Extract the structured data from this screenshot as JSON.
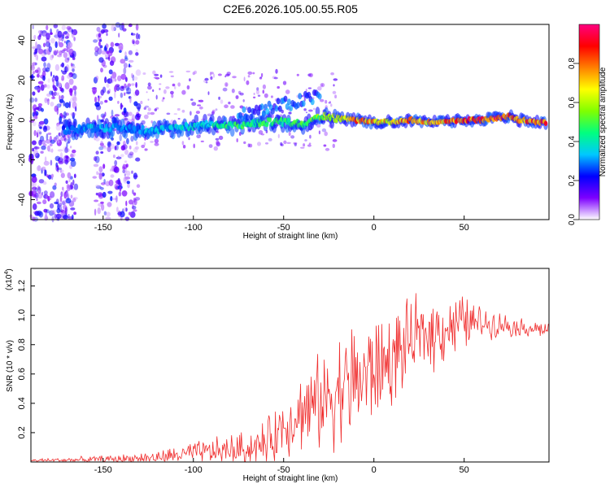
{
  "figure_title": "C2E6.2026.105.00.55.R05",
  "chart_data": [
    {
      "id": "spectrogram",
      "type": "heatmap",
      "xlabel": "Height of straight line (km)",
      "ylabel": "Frequency (Hz)",
      "xlim": [
        -190,
        97
      ],
      "ylim": [
        -50,
        48
      ],
      "xticks": [
        -150,
        -100,
        -50,
        0,
        50
      ],
      "yticks": [
        -40,
        -20,
        0,
        20,
        40
      ],
      "colorbar": {
        "label": "Normalized spectral amplitude",
        "range": [
          0,
          1
        ],
        "ticks": [
          0.0,
          0.2,
          0.4,
          0.6,
          0.8
        ],
        "tick_labels": [
          "0.0",
          "0.2",
          "0.4",
          "0.6",
          "0.8"
        ],
        "stops": [
          "#ffffff",
          "#7d00ff",
          "#0000ff",
          "#00c8ff",
          "#00ff80",
          "#80ff00",
          "#ffff00",
          "#ff8000",
          "#ff0000",
          "#ff0080"
        ]
      },
      "ridge": {
        "x": [
          -170,
          -160,
          -150,
          -140,
          -130,
          -120,
          -110,
          -100,
          -90,
          -80,
          -70,
          -60,
          -50,
          -40,
          -30,
          -20,
          -10,
          0,
          10,
          20,
          30,
          40,
          50,
          60,
          70,
          75,
          80,
          90,
          97
        ],
        "frequency_hz": [
          -5,
          -4,
          -4,
          -4,
          -5,
          -5,
          -4,
          -3,
          -2,
          -3,
          -2,
          -1,
          -1,
          -2,
          2,
          1,
          0,
          -1,
          -1,
          0,
          -1,
          -1,
          0,
          0,
          1,
          2,
          0,
          -1,
          -1
        ],
        "amplitude": [
          0.3,
          0.35,
          0.35,
          0.35,
          0.35,
          0.35,
          0.4,
          0.4,
          0.45,
          0.5,
          0.5,
          0.5,
          0.5,
          0.55,
          0.6,
          0.7,
          0.85,
          0.8,
          0.75,
          0.9,
          0.8,
          0.85,
          0.9,
          0.95,
          0.95,
          0.9,
          0.85,
          0.9,
          0.9
        ]
      },
      "noise_bands_x": [
        [
          -190,
          -165
        ],
        [
          -155,
          -130
        ]
      ]
    },
    {
      "id": "snr",
      "type": "line",
      "xlabel": "Height of straight line (km)",
      "ylabel": "SNR (10 * v/v)",
      "exponent_label": "(x10",
      "exponent_power": "4",
      "exponent_close": ")",
      "xlim": [
        -190,
        97
      ],
      "ylim": [
        0,
        1.32
      ],
      "xticks": [
        -150,
        -100,
        -50,
        0,
        50
      ],
      "yticks": [
        0.2,
        0.4,
        0.6,
        0.8,
        1.0,
        1.2
      ],
      "ytick_labels": [
        "0.2",
        "0.4",
        "0.6",
        "0.8",
        "1.0",
        "1.2"
      ],
      "line_color": "#f03030",
      "envelope": {
        "x": [
          -190,
          -160,
          -140,
          -120,
          -100,
          -80,
          -70,
          -60,
          -50,
          -40,
          -30,
          -20,
          -10,
          0,
          10,
          20,
          30,
          40,
          50,
          60,
          70,
          80,
          97
        ],
        "base": [
          0.01,
          0.015,
          0.02,
          0.03,
          0.06,
          0.08,
          0.09,
          0.12,
          0.25,
          0.35,
          0.4,
          0.5,
          0.55,
          0.62,
          0.7,
          0.82,
          0.88,
          0.92,
          0.95,
          0.95,
          0.94,
          0.92,
          0.9
        ],
        "spread": [
          0.01,
          0.02,
          0.03,
          0.04,
          0.07,
          0.1,
          0.12,
          0.14,
          0.2,
          0.25,
          0.3,
          0.35,
          0.4,
          0.35,
          0.3,
          0.25,
          0.25,
          0.22,
          0.18,
          0.1,
          0.08,
          0.06,
          0.05
        ]
      }
    }
  ]
}
